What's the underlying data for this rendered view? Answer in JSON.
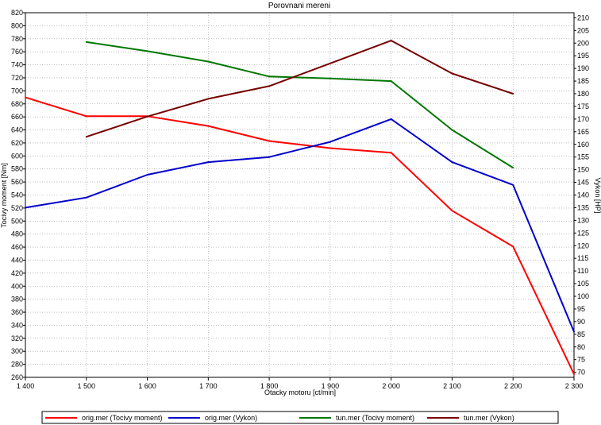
{
  "chart_data": {
    "type": "line",
    "title": "Porovnani mereni",
    "xlabel": "Otacky motoru [ct/min]",
    "ylabel_left": "Tocivy moment [Nm]",
    "ylabel_right": "Vykon [HP]",
    "x": [
      1500,
      1600,
      1700,
      1800,
      1900,
      2000,
      2100,
      2200,
      2300
    ],
    "x_tick_labels": [
      "1 400",
      "1 500",
      "1 600",
      "1 700",
      "1 800",
      "1 900",
      "2 000",
      "2 100",
      "2 200",
      "2 300"
    ],
    "x_ticks": [
      1400,
      1500,
      1600,
      1700,
      1800,
      1900,
      2000,
      2100,
      2200,
      2300
    ],
    "xlim": [
      1400,
      2300
    ],
    "ylim_left": [
      260,
      820
    ],
    "ylim_right": [
      68,
      212
    ],
    "y_left_ticks": [
      260,
      280,
      300,
      320,
      340,
      360,
      380,
      400,
      420,
      440,
      460,
      480,
      500,
      520,
      540,
      560,
      580,
      600,
      620,
      640,
      660,
      680,
      700,
      720,
      740,
      760,
      780,
      800,
      820
    ],
    "y_right_ticks": [
      70,
      75,
      80,
      85,
      90,
      95,
      100,
      105,
      110,
      115,
      120,
      125,
      130,
      135,
      140,
      145,
      150,
      155,
      160,
      165,
      170,
      175,
      180,
      185,
      190,
      195,
      200,
      205,
      210
    ],
    "grid": true,
    "legend_position": "bottom",
    "series": [
      {
        "name": "orig.mer  (Tocivy moment)",
        "axis": "left",
        "color": "#ff0000",
        "x": [
          1400,
          1500,
          1600,
          1700,
          1800,
          1900,
          2000,
          2100,
          2200,
          2300
        ],
        "values": [
          690,
          661,
          661,
          646,
          623,
          612,
          605,
          516,
          461,
          265
        ]
      },
      {
        "name": "orig.mer  (Vykon)",
        "axis": "right",
        "color": "#0000cc",
        "x": [
          1400,
          1500,
          1600,
          1700,
          1800,
          1900,
          2000,
          2100,
          2200,
          2300
        ],
        "values": [
          135,
          139,
          148,
          153,
          155,
          161,
          170,
          153,
          144,
          86
        ]
      },
      {
        "name": "tun.mer  (Tocivy moment)",
        "axis": "left",
        "color": "#007700",
        "x": [
          1500,
          1600,
          1700,
          1800,
          1900,
          2000,
          2100,
          2200
        ],
        "values": [
          775,
          761,
          745,
          722,
          719,
          715,
          640,
          582
        ]
      },
      {
        "name": "tun.mer  (Vykon)",
        "axis": "right",
        "color": "#770000",
        "x": [
          1500,
          1600,
          1700,
          1800,
          1900,
          2000,
          2100,
          2200
        ],
        "values": [
          163,
          171,
          178,
          183,
          192,
          201,
          188,
          180
        ]
      }
    ]
  }
}
